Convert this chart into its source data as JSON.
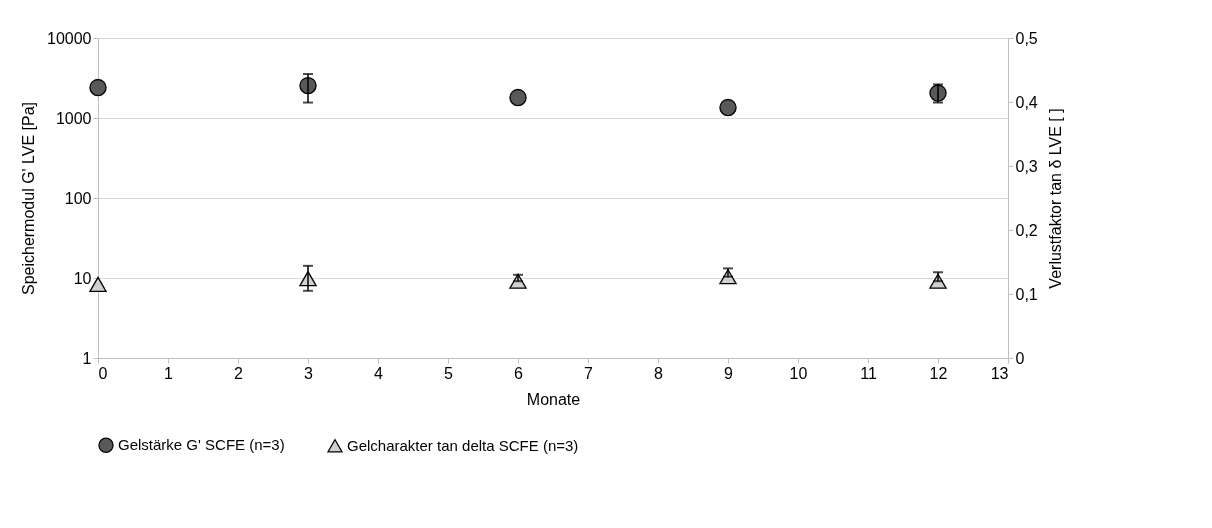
{
  "chart_data": {
    "type": "scatter",
    "xlabel": "Monate",
    "ylabel": "Speichermodul G' LVE [Pa]",
    "y2label": "Verlustfaktor tan δ LVE [ ]",
    "x": [
      0,
      3,
      6,
      9,
      12
    ],
    "series": [
      {
        "name": "Gelstärke G' SCFE (n=3)",
        "color": "#595959",
        "marker": "circle",
        "values": [
          2400,
          2540,
          1800,
          1350,
          2050
        ],
        "errors": [
          null,
          [
            1560,
            3550
          ],
          null,
          null,
          [
            1560,
            2630
          ]
        ]
      },
      {
        "name": "Gelcharakter tan delta SCFE (n=3)",
        "color": "#d0d0d0",
        "marker": "triangle",
        "axis": "y2",
        "values": [
          0.115,
          0.124,
          0.12,
          0.127,
          0.12
        ],
        "errors": [
          null,
          [
            0.105,
            0.144
          ],
          [
            0.12,
            0.13
          ],
          [
            0.127,
            0.14
          ],
          [
            0.12,
            0.134
          ]
        ]
      }
    ],
    "xlim": [
      0,
      13
    ],
    "xticks": [
      0,
      1,
      2,
      3,
      4,
      5,
      6,
      7,
      8,
      9,
      10,
      11,
      12,
      13
    ],
    "ylim": [
      1,
      10000
    ],
    "yticks": [
      1,
      10,
      100,
      1000,
      10000
    ],
    "log": true,
    "y2lim": [
      0,
      0.5
    ],
    "y2ticks": [
      {
        "value": 0,
        "label": "0"
      },
      {
        "value": 0.1,
        "label": "0,1"
      },
      {
        "value": 0.2,
        "label": "0,2"
      },
      {
        "value": 0.3,
        "label": "0,3"
      },
      {
        "value": 0.4,
        "label": "0,4"
      },
      {
        "value": 0.5,
        "label": "0,5"
      }
    ],
    "grid": "y",
    "legend": "bottom"
  }
}
